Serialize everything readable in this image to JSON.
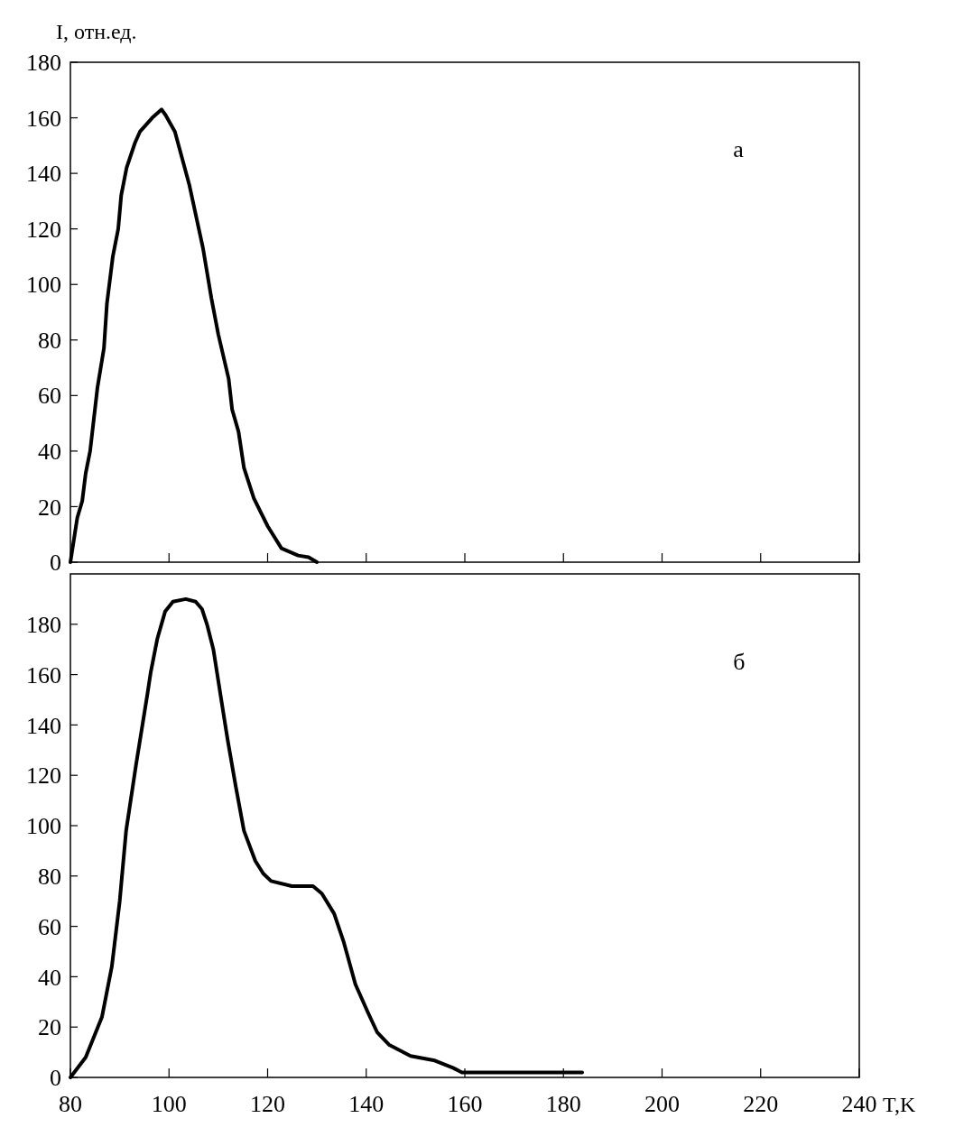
{
  "chart_data": [
    {
      "type": "line",
      "ylabel": "I, отн.ед.",
      "annotations": [
        "а"
      ],
      "xlim": [
        80,
        240
      ],
      "xticks": [
        80,
        100,
        120,
        140,
        160,
        180,
        200,
        220,
        240
      ],
      "ylim": [
        0,
        180
      ],
      "yticks": [
        0,
        20,
        40,
        60,
        80,
        100,
        120,
        140,
        160,
        180
      ],
      "tick_labels": "y",
      "grid": false,
      "marker": "none",
      "line_style": "solid",
      "series": [
        {
          "color": "#000000",
          "x": [
            80,
            81.4,
            82.4,
            83.1,
            84,
            85.5,
            86.8,
            87.4,
            88.6,
            89.7,
            90.3,
            91.4,
            93.1,
            94.1,
            96.6,
            98.5,
            99.3,
            101.2,
            104.1,
            106.9,
            108.6,
            110,
            112.1,
            112.8,
            114.1,
            115.2,
            117.2,
            120,
            122.8,
            126.2,
            128.3,
            130
          ],
          "values": [
            0,
            16,
            22,
            32,
            40,
            63,
            77,
            93,
            110,
            120,
            132,
            142,
            151,
            155,
            160,
            163,
            161,
            155,
            136,
            113,
            95,
            82,
            66,
            55,
            47,
            34,
            23,
            13,
            5,
            2.4,
            1.8,
            0
          ]
        }
      ]
    },
    {
      "type": "line",
      "xlabel": "T,K",
      "annotations": [
        "б"
      ],
      "xlim": [
        80,
        240
      ],
      "xticks": [
        80,
        100,
        120,
        140,
        160,
        180,
        200,
        220,
        240
      ],
      "ylim": [
        0,
        200
      ],
      "yticks": [
        0,
        20,
        40,
        60,
        80,
        100,
        120,
        140,
        160,
        180
      ],
      "grid": false,
      "marker": "none",
      "line_style": "solid",
      "series": [
        {
          "color": "#000000",
          "x": [
            80,
            83.1,
            86.4,
            88.4,
            90,
            91.3,
            93.3,
            95.6,
            96.3,
            97.6,
            99.2,
            100.8,
            103.4,
            105.4,
            106.7,
            107.7,
            109,
            110.6,
            111.9,
            113.5,
            115.2,
            117.5,
            119.1,
            120.7,
            124.9,
            129.2,
            131,
            133.5,
            135.4,
            137.8,
            140.3,
            142.2,
            144.6,
            149,
            153.9,
            157.6,
            159.4,
            183.8
          ],
          "values": [
            0,
            8,
            24,
            44,
            70,
            98,
            124,
            152,
            161,
            174,
            185,
            189,
            190,
            189,
            186,
            180,
            170,
            150,
            134,
            116,
            98,
            86,
            81,
            78,
            76,
            76,
            73,
            65,
            54,
            37,
            26,
            18,
            13,
            8.5,
            6.7,
            3.8,
            2,
            2
          ]
        }
      ]
    }
  ]
}
